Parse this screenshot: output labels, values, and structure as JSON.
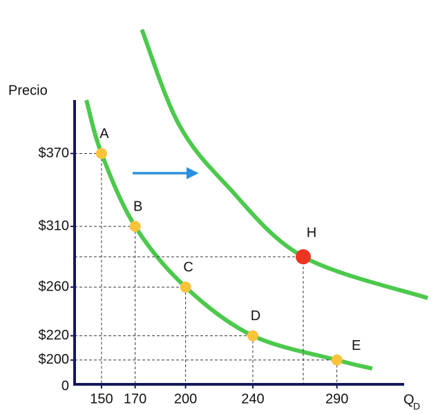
{
  "chart_data": {
    "type": "line",
    "y_axis_label": "Precio",
    "x_axis_label": "Q",
    "x_axis_subscript": "D",
    "origin_label": "0",
    "xlim": [
      134,
      330
    ],
    "ylim": [
      180,
      414
    ],
    "xticks": [
      150,
      170,
      200,
      240,
      290
    ],
    "yticks": [
      {
        "value": 370,
        "label": "$370"
      },
      {
        "value": 310,
        "label": "$310"
      },
      {
        "value": 260,
        "label": "$260"
      },
      {
        "value": 220,
        "label": "$220"
      },
      {
        "value": 200,
        "label": "$200"
      }
    ],
    "series": [
      {
        "color": "#4cc94c",
        "x": [
          141,
          150,
          170,
          200,
          240,
          290,
          311
        ],
        "values": [
          414,
          370,
          310,
          260,
          220,
          200,
          193
        ]
      },
      {
        "color": "#4cc94c",
        "x": [
          174,
          196,
          225,
          270,
          344
        ],
        "values": [
          472,
          394,
          343,
          285,
          251
        ]
      }
    ],
    "points": [
      {
        "label": "A",
        "x": 150,
        "y": 370,
        "color": "#f9c33a"
      },
      {
        "label": "B",
        "x": 170,
        "y": 310,
        "color": "#f9c33a"
      },
      {
        "label": "C",
        "x": 200,
        "y": 260,
        "color": "#f9c33a"
      },
      {
        "label": "D",
        "x": 240,
        "y": 220,
        "color": "#f9c33a"
      },
      {
        "label": "E",
        "x": 290,
        "y": 200,
        "color": "#f9c33a"
      },
      {
        "label": "H",
        "x": 270,
        "y": 285,
        "color": "#ee3524"
      }
    ]
  }
}
